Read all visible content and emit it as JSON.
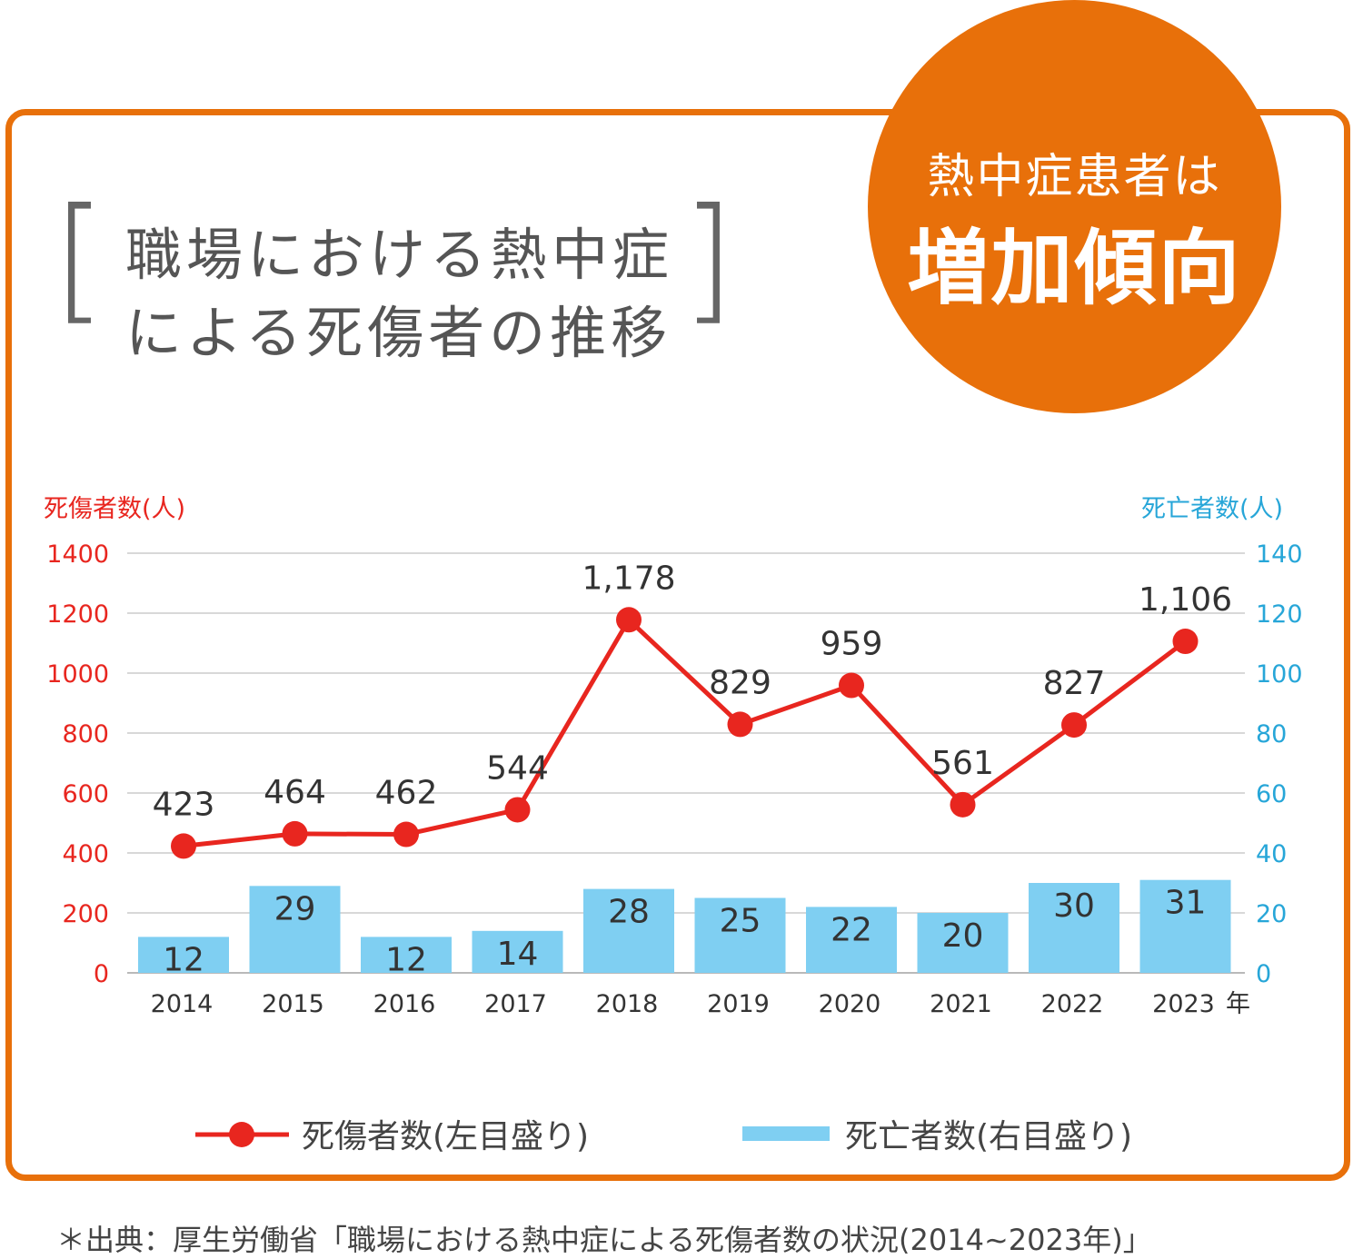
{
  "title": {
    "line1": "職場における熱中症",
    "line2": "による死傷者の推移",
    "bracket_open": "[",
    "bracket_close": "]"
  },
  "badge": {
    "line1": "熱中症患者は",
    "line2": "増加傾向"
  },
  "colors": {
    "frame": "#e8700a",
    "injured_line": "#e8261f",
    "deaths_bar": "#7fcff2",
    "right_axis_text": "#27a6d8",
    "left_axis_text": "#e8261f"
  },
  "chart_data": {
    "type": "bar",
    "x": [
      "2014",
      "2015",
      "2016",
      "2017",
      "2018",
      "2019",
      "2020",
      "2021",
      "2022",
      "2023"
    ],
    "x_unit": "年",
    "series": [
      {
        "name": "死傷者数(左目盛り)",
        "kind": "line",
        "axis": "left",
        "values": [
          423,
          464,
          462,
          544,
          1178,
          829,
          959,
          561,
          827,
          1106
        ],
        "labels": [
          "423",
          "464",
          "462",
          "544",
          "1,178",
          "829",
          "959",
          "561",
          "827",
          "1,106"
        ]
      },
      {
        "name": "死亡者数(右目盛り)",
        "kind": "bar",
        "axis": "right",
        "values": [
          12,
          29,
          12,
          14,
          28,
          25,
          22,
          20,
          30,
          31
        ],
        "labels": [
          "12",
          "29",
          "12",
          "14",
          "28",
          "25",
          "22",
          "20",
          "30",
          "31"
        ]
      }
    ],
    "y_left": {
      "label": "死傷者数(人)",
      "range": [
        0,
        1400
      ],
      "ticks": [
        "0",
        "200",
        "400",
        "600",
        "800",
        "1000",
        "1200",
        "1400"
      ]
    },
    "y_right": {
      "label": "死亡者数(人)",
      "range": [
        0,
        140
      ],
      "ticks": [
        "0",
        "20",
        "40",
        "60",
        "80",
        "100",
        "120",
        "140"
      ]
    },
    "grid": true,
    "legend_position": "bottom"
  },
  "source": "＊出典：厚生労働省「職場における熱中症による死傷者数の状況(2014~2023年)」"
}
